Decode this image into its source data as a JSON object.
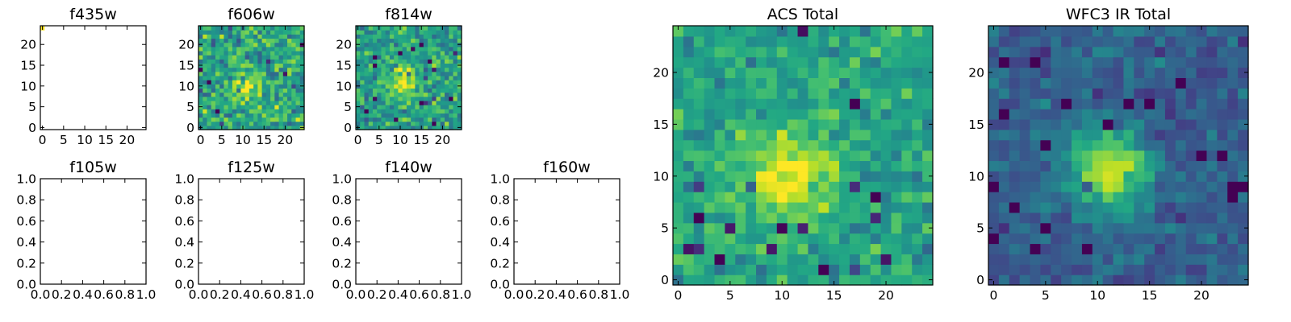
{
  "chart_data": [
    {
      "type": "heatmap",
      "title": "f435w",
      "extent": [
        -0.5,
        24.5,
        -0.5,
        24.5
      ],
      "xticks": [
        0,
        5,
        10,
        15,
        20
      ],
      "yticks": [
        0,
        5,
        10,
        15,
        20
      ],
      "image": {
        "seed": 7,
        "peak": [
          10.5,
          10
        ],
        "sigma": 3,
        "amp": 0.002,
        "noise": 0.002,
        "base": 0.0,
        "bright_pixel": [
          0,
          24
        ],
        "cmap": "viridis"
      }
    },
    {
      "type": "heatmap",
      "title": "f606w",
      "extent": [
        -0.5,
        24.5,
        -0.5,
        24.5
      ],
      "xticks": [
        0,
        5,
        10,
        15,
        20
      ],
      "yticks": [
        0,
        5,
        10,
        15,
        20
      ],
      "image": {
        "seed": 11,
        "peak": [
          11,
          10
        ],
        "sigma": 2.4,
        "amp": 0.35,
        "noise": 0.2,
        "base": 0.58,
        "cmap": "viridis"
      }
    },
    {
      "type": "heatmap",
      "title": "f814w",
      "extent": [
        -0.5,
        24.5,
        -0.5,
        24.5
      ],
      "xticks": [
        0,
        5,
        10,
        15,
        20
      ],
      "yticks": [
        0,
        5,
        10,
        15,
        20
      ],
      "image": {
        "seed": 23,
        "peak": [
          11,
          11
        ],
        "sigma": 2.6,
        "amp": 0.4,
        "noise": 0.17,
        "base": 0.56,
        "cmap": "viridis"
      }
    },
    {
      "type": "heatmap",
      "title": "f105w",
      "xlim": [
        0,
        1
      ],
      "ylim": [
        0,
        1
      ],
      "xticks": [
        "0.0",
        "0.2",
        "0.4",
        "0.6",
        "0.8",
        "1.0"
      ],
      "yticks": [
        "0.0",
        "0.2",
        "0.4",
        "0.6",
        "0.8",
        "1.0"
      ],
      "image": null
    },
    {
      "type": "heatmap",
      "title": "f125w",
      "xlim": [
        0,
        1
      ],
      "ylim": [
        0,
        1
      ],
      "xticks": [
        "0.0",
        "0.2",
        "0.4",
        "0.6",
        "0.8",
        "1.0"
      ],
      "yticks": [
        "0.0",
        "0.2",
        "0.4",
        "0.6",
        "0.8",
        "1.0"
      ],
      "image": null
    },
    {
      "type": "heatmap",
      "title": "f140w",
      "xlim": [
        0,
        1
      ],
      "ylim": [
        0,
        1
      ],
      "xticks": [
        "0.0",
        "0.2",
        "0.4",
        "0.6",
        "0.8",
        "1.0"
      ],
      "yticks": [
        "0.0",
        "0.2",
        "0.4",
        "0.6",
        "0.8",
        "1.0"
      ],
      "image": null
    },
    {
      "type": "heatmap",
      "title": "f160w",
      "xlim": [
        0,
        1
      ],
      "ylim": [
        0,
        1
      ],
      "xticks": [
        "0.0",
        "0.2",
        "0.4",
        "0.6",
        "0.8",
        "1.0"
      ],
      "yticks": [
        "0.0",
        "0.2",
        "0.4",
        "0.6",
        "0.8",
        "1.0"
      ],
      "image": null
    },
    {
      "type": "heatmap",
      "title": "ACS Total",
      "extent": [
        -0.5,
        24.5,
        -0.5,
        24.5
      ],
      "xticks": [
        0,
        5,
        10,
        15,
        20
      ],
      "yticks": [
        0,
        5,
        10,
        15,
        20
      ],
      "image": {
        "seed": 31,
        "peak": [
          10.5,
          10
        ],
        "sigma": 3.2,
        "amp": 0.38,
        "noise": 0.13,
        "base": 0.58,
        "cmap": "viridis"
      }
    },
    {
      "type": "heatmap",
      "title": "WFC3 IR Total",
      "extent": [
        -0.5,
        24.5,
        -0.5,
        24.5
      ],
      "xticks": [
        0,
        5,
        10,
        15,
        20
      ],
      "yticks": [
        0,
        5,
        10,
        15,
        20
      ],
      "image": {
        "seed": 47,
        "peak": [
          11,
          10.5
        ],
        "sigma": 2.8,
        "amp": 0.62,
        "noise": 0.1,
        "base": 0.3,
        "cmap": "viridis"
      }
    }
  ]
}
